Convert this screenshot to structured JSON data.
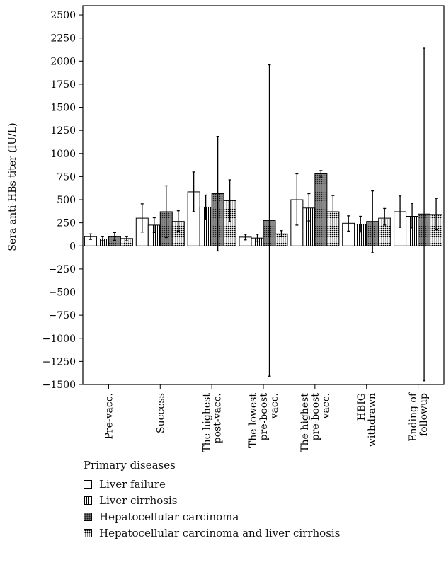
{
  "chart_data": {
    "type": "bar",
    "ylabel": "Sera anti-HBs titer (IU/L)",
    "ylim": [
      -1500,
      2600
    ],
    "yticks": [
      -1500,
      -1250,
      -1000,
      -750,
      -500,
      -250,
      0,
      250,
      500,
      750,
      1000,
      1250,
      1500,
      1750,
      2000,
      2250,
      2500
    ],
    "ytick_labels": [
      "−1500",
      "−1250",
      "−1000",
      "−750",
      "−500",
      "−250",
      "0",
      "250",
      "500",
      "750",
      "1000",
      "1250",
      "1500",
      "1750",
      "2000",
      "2250",
      "2500"
    ],
    "categories": [
      [
        "Pre-vacc."
      ],
      [
        "Success"
      ],
      [
        "The highest",
        "post-vacc."
      ],
      [
        "The lowest",
        "pre-boost",
        "vacc."
      ],
      [
        "The highest",
        "pre-boost",
        "vacc."
      ],
      [
        "HBIG",
        "withdrawn"
      ],
      [
        "Ending of",
        "followup"
      ]
    ],
    "legend_title": "Primary diseases",
    "series": [
      {
        "name": "Liver failure",
        "values": [
          100,
          300,
          585,
          95,
          500,
          245,
          370
        ],
        "err_low": [
          70,
          150,
          370,
          65,
          225,
          160,
          200
        ],
        "err_high": [
          130,
          455,
          800,
          125,
          780,
          325,
          540
        ]
      },
      {
        "name": "Liver cirrhosis",
        "values": [
          75,
          225,
          420,
          85,
          410,
          235,
          320
        ],
        "err_low": [
          55,
          145,
          290,
          50,
          270,
          150,
          195
        ],
        "err_high": [
          100,
          305,
          550,
          125,
          565,
          320,
          460
        ]
      },
      {
        "name": "Hepatocellular carcinoma",
        "values": [
          100,
          370,
          565,
          275,
          780,
          265,
          345
        ],
        "err_low": [
          60,
          90,
          -55,
          -1410,
          745,
          -75,
          -1460
        ],
        "err_high": [
          145,
          650,
          1185,
          1960,
          815,
          595,
          2140
        ]
      },
      {
        "name": "Hepatocellular carcinoma and liver cirrhosis",
        "values": [
          80,
          265,
          490,
          130,
          370,
          300,
          340
        ],
        "err_low": [
          55,
          160,
          265,
          100,
          205,
          225,
          175
        ],
        "err_high": [
          100,
          380,
          715,
          165,
          545,
          405,
          515
        ]
      }
    ]
  }
}
